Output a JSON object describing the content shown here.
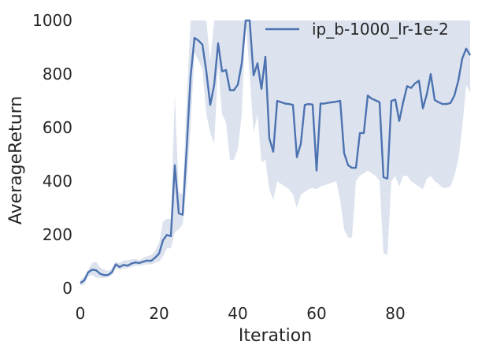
{
  "chart_data": {
    "type": "line",
    "xlabel": "Iteration",
    "ylabel": "AverageReturn",
    "xlim": [
      0,
      99
    ],
    "ylim": [
      -20,
      1000
    ],
    "xticks": [
      0,
      20,
      40,
      60,
      80
    ],
    "yticks": [
      0,
      200,
      400,
      600,
      800,
      1000
    ],
    "grid": false,
    "legend_position": "top-right",
    "colors": {
      "line": "#4c72b0",
      "band": "#dce3ee"
    },
    "series": [
      {
        "name": "ip_b-1000_lr-1e-2",
        "x": [
          0,
          1,
          2,
          3,
          4,
          5,
          6,
          7,
          8,
          9,
          10,
          11,
          12,
          13,
          14,
          15,
          16,
          17,
          18,
          19,
          20,
          21,
          22,
          23,
          24,
          25,
          26,
          27,
          28,
          29,
          30,
          31,
          32,
          33,
          34,
          35,
          36,
          37,
          38,
          39,
          40,
          41,
          42,
          43,
          44,
          45,
          46,
          47,
          48,
          49,
          50,
          51,
          52,
          53,
          54,
          55,
          56,
          57,
          58,
          59,
          60,
          61,
          62,
          63,
          64,
          65,
          66,
          67,
          68,
          69,
          70,
          71,
          72,
          73,
          74,
          75,
          76,
          77,
          78,
          79,
          80,
          81,
          82,
          83,
          84,
          85,
          86,
          87,
          88,
          89,
          90,
          91,
          92,
          93,
          94,
          95,
          96,
          97,
          98,
          99
        ],
        "y": [
          20,
          30,
          60,
          70,
          68,
          55,
          50,
          50,
          60,
          90,
          80,
          88,
          85,
          93,
          97,
          95,
          100,
          104,
          103,
          115,
          130,
          180,
          200,
          195,
          460,
          280,
          275,
          520,
          790,
          935,
          925,
          910,
          810,
          685,
          760,
          915,
          810,
          815,
          740,
          740,
          760,
          840,
          1000,
          1000,
          795,
          840,
          745,
          865,
          560,
          510,
          700,
          695,
          690,
          688,
          685,
          490,
          540,
          685,
          688,
          686,
          440,
          690,
          690,
          693,
          695,
          697,
          700,
          505,
          460,
          450,
          450,
          580,
          580,
          720,
          708,
          702,
          695,
          415,
          410,
          700,
          705,
          625,
          695,
          755,
          748,
          765,
          775,
          672,
          725,
          800,
          703,
          695,
          688,
          688,
          692,
          720,
          775,
          858,
          895,
          870
        ],
        "upper": [
          30,
          45,
          70,
          95,
          100,
          80,
          70,
          65,
          75,
          100,
          95,
          105,
          105,
          108,
          110,
          105,
          115,
          120,
          125,
          140,
          170,
          250,
          260,
          260,
          725,
          360,
          350,
          700,
          1000,
          1000,
          1000,
          1000,
          1000,
          850,
          1000,
          1000,
          1000,
          1000,
          1000,
          1000,
          1000,
          1000,
          1000,
          1000,
          1000,
          1000,
          1000,
          1000,
          1000,
          1000,
          1000,
          1000,
          1000,
          1000,
          1000,
          1000,
          1000,
          1000,
          1000,
          1000,
          1000,
          1000,
          1000,
          1000,
          1000,
          1000,
          1000,
          1000,
          1000,
          1000,
          1000,
          1000,
          1000,
          1000,
          1000,
          1000,
          1000,
          1000,
          1000,
          1000,
          1000,
          1000,
          1000,
          1000,
          1000,
          1000,
          1000,
          1000,
          1000,
          1000,
          1000,
          1000,
          1000,
          1000,
          1000,
          1000,
          1000,
          1000,
          1000,
          1000
        ],
        "lower": [
          10,
          15,
          45,
          50,
          40,
          40,
          38,
          42,
          50,
          75,
          70,
          75,
          75,
          80,
          85,
          85,
          88,
          90,
          90,
          95,
          100,
          120,
          150,
          150,
          210,
          220,
          240,
          380,
          600,
          880,
          850,
          820,
          650,
          580,
          540,
          830,
          650,
          620,
          480,
          480,
          520,
          650,
          1000,
          800,
          580,
          650,
          470,
          480,
          370,
          330,
          400,
          390,
          380,
          370,
          350,
          300,
          350,
          360,
          370,
          375,
          370,
          380,
          385,
          390,
          395,
          400,
          330,
          220,
          190,
          190,
          400,
          420,
          430,
          440,
          430,
          420,
          400,
          130,
          125,
          400,
          420,
          380,
          420,
          420,
          400,
          390,
          380,
          370,
          410,
          420,
          400,
          390,
          375,
          375,
          380,
          420,
          480,
          600,
          760,
          730
        ]
      }
    ]
  }
}
